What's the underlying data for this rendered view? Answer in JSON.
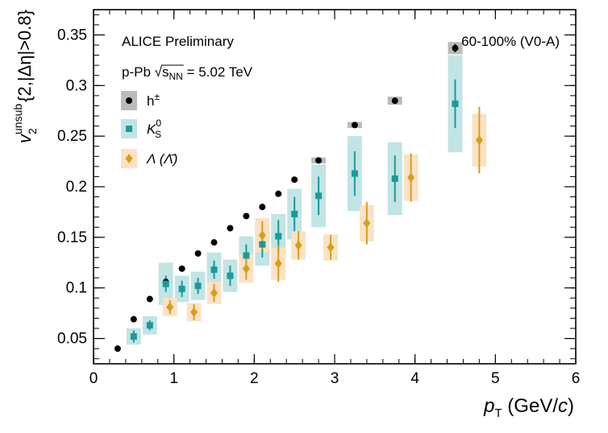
{
  "chart_data": {
    "type": "scatter",
    "xlim": [
      0,
      6
    ],
    "ylim": [
      0.025,
      0.375
    ],
    "xticks": [
      0,
      1,
      2,
      3,
      4,
      5,
      6
    ],
    "yticks": [
      0.05,
      0.1,
      0.15,
      0.2,
      0.25,
      0.3,
      0.35
    ],
    "xtick_labels": [
      "0",
      "1",
      "2",
      "3",
      "4",
      "5",
      "6"
    ],
    "ytick_labels": [
      "0.05",
      "0.1",
      "0.15",
      "0.2",
      "0.25",
      "0.3",
      "0.35"
    ],
    "xlabel": {
      "main": "p",
      "sub": "T",
      "rest": " (GeV/",
      "italic": "c",
      "close": ")"
    },
    "ylabel": {
      "main": "v",
      "sub": "2",
      "sup": "unsub",
      "rest": "{2,|Δη|>0.8}"
    },
    "annotations": {
      "experiment": "ALICE Preliminary",
      "centrality": "60-100% (V0-A)",
      "system_prefix": "p-Pb ",
      "system_sqrt": "s",
      "system_sub": "NN",
      "system_suffix": " = 5.02 TeV"
    },
    "grid": false,
    "legend_position": "top-left",
    "series": [
      {
        "name": "h±",
        "legend": {
          "main": "h",
          "sup": "±"
        },
        "marker": "circle",
        "color": "#000000",
        "box_color": "#bbbbbb",
        "points": [
          {
            "x": 0.3,
            "y": 0.04,
            "err": 0.0,
            "sys": 0.0
          },
          {
            "x": 0.5,
            "y": 0.069,
            "err": 0.0,
            "sys": 0.0
          },
          {
            "x": 0.7,
            "y": 0.089,
            "err": 0.0,
            "sys": 0.0
          },
          {
            "x": 0.9,
            "y": 0.106,
            "err": 0.0,
            "sys": 0.0
          },
          {
            "x": 1.1,
            "y": 0.119,
            "err": 0.0,
            "sys": 0.0
          },
          {
            "x": 1.3,
            "y": 0.134,
            "err": 0.0,
            "sys": 0.0
          },
          {
            "x": 1.5,
            "y": 0.145,
            "err": 0.0,
            "sys": 0.0
          },
          {
            "x": 1.7,
            "y": 0.159,
            "err": 0.0,
            "sys": 0.0
          },
          {
            "x": 1.9,
            "y": 0.171,
            "err": 0.0,
            "sys": 0.0
          },
          {
            "x": 2.1,
            "y": 0.18,
            "err": 0.0,
            "sys": 0.0
          },
          {
            "x": 2.3,
            "y": 0.193,
            "err": 0.0,
            "sys": 0.0
          },
          {
            "x": 2.5,
            "y": 0.207,
            "err": 0.0,
            "sys": 0.0
          },
          {
            "x": 2.8,
            "y": 0.226,
            "err": 0.0,
            "sys": 0.003
          },
          {
            "x": 3.25,
            "y": 0.261,
            "err": 0.0,
            "sys": 0.003
          },
          {
            "x": 3.75,
            "y": 0.285,
            "err": 0.003,
            "sys": 0.004
          },
          {
            "x": 4.5,
            "y": 0.337,
            "err": 0.004,
            "sys": 0.006
          }
        ]
      },
      {
        "name": "K0S",
        "legend": {
          "main": "K",
          "sup": "0",
          "sub": "S"
        },
        "marker": "square",
        "color": "#1a9a9a",
        "box_color": "#c2e4e4",
        "points": [
          {
            "x": 0.5,
            "y": 0.052,
            "err": 0.006,
            "sys": 0.008
          },
          {
            "x": 0.7,
            "y": 0.063,
            "err": 0.005,
            "sys": 0.009
          },
          {
            "x": 0.9,
            "y": 0.104,
            "err": 0.008,
            "sys": 0.021
          },
          {
            "x": 1.1,
            "y": 0.099,
            "err": 0.008,
            "sys": 0.013
          },
          {
            "x": 1.3,
            "y": 0.102,
            "err": 0.008,
            "sys": 0.014
          },
          {
            "x": 1.5,
            "y": 0.118,
            "err": 0.009,
            "sys": 0.017
          },
          {
            "x": 1.7,
            "y": 0.112,
            "err": 0.01,
            "sys": 0.016
          },
          {
            "x": 1.9,
            "y": 0.132,
            "err": 0.011,
            "sys": 0.019
          },
          {
            "x": 2.1,
            "y": 0.143,
            "err": 0.013,
            "sys": 0.021
          },
          {
            "x": 2.3,
            "y": 0.151,
            "err": 0.016,
            "sys": 0.022
          },
          {
            "x": 2.5,
            "y": 0.173,
            "err": 0.017,
            "sys": 0.025
          },
          {
            "x": 2.8,
            "y": 0.191,
            "err": 0.019,
            "sys": 0.031
          },
          {
            "x": 3.25,
            "y": 0.213,
            "err": 0.022,
            "sys": 0.037
          },
          {
            "x": 3.75,
            "y": 0.208,
            "err": 0.023,
            "sys": 0.036
          },
          {
            "x": 4.5,
            "y": 0.282,
            "err": 0.024,
            "sys": 0.048
          }
        ]
      },
      {
        "name": "Λ(Λ̄)",
        "legend": {
          "main": "Λ (Λ̄)"
        },
        "marker": "diamond",
        "color": "#d4a017",
        "box_color": "#fbe2c6",
        "points": [
          {
            "x": 0.95,
            "y": 0.081,
            "err": 0.007,
            "sys": 0.009
          },
          {
            "x": 1.25,
            "y": 0.076,
            "err": 0.008,
            "sys": 0.009
          },
          {
            "x": 1.5,
            "y": 0.095,
            "err": 0.009,
            "sys": 0.011
          },
          {
            "x": 1.9,
            "y": 0.119,
            "err": 0.011,
            "sys": 0.014
          },
          {
            "x": 2.1,
            "y": 0.152,
            "err": 0.014,
            "sys": 0.017
          },
          {
            "x": 2.3,
            "y": 0.124,
            "err": 0.018,
            "sys": 0.016
          },
          {
            "x": 2.55,
            "y": 0.142,
            "err": 0.014,
            "sys": 0.014
          },
          {
            "x": 2.95,
            "y": 0.14,
            "err": 0.012,
            "sys": 0.013
          },
          {
            "x": 3.4,
            "y": 0.164,
            "err": 0.021,
            "sys": 0.018
          },
          {
            "x": 3.95,
            "y": 0.209,
            "err": 0.024,
            "sys": 0.023
          },
          {
            "x": 4.8,
            "y": 0.246,
            "err": 0.033,
            "sys": 0.026
          }
        ]
      }
    ]
  }
}
